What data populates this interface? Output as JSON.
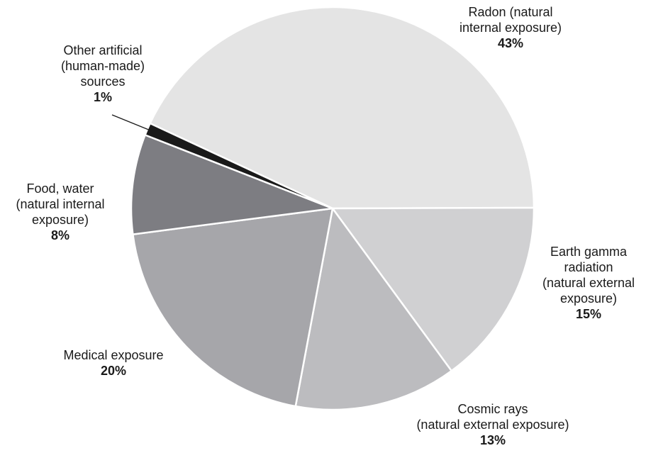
{
  "chart_data": {
    "type": "pie",
    "title": "",
    "slices": [
      {
        "label": "Radon (natural internal exposure)",
        "value": 43,
        "display": "43%",
        "color": "#e4e4e4"
      },
      {
        "label": "Earth gamma radiation (natural external exposure)",
        "value": 15,
        "display": "15%",
        "color": "#d0d0d2"
      },
      {
        "label": "Cosmic rays (natural external exposure)",
        "value": 13,
        "display": "13%",
        "color": "#bcbcbf"
      },
      {
        "label": "Medical exposure",
        "value": 20,
        "display": "20%",
        "color": "#a6a6aa"
      },
      {
        "label": "Food, water (natural internal exposure)",
        "value": 8,
        "display": "8%",
        "color": "#7d7d82"
      },
      {
        "label": "Other artificial (human-made) sources",
        "value": 1,
        "display": "1%",
        "color": "#1a1a1a"
      }
    ]
  },
  "labels": {
    "radon": {
      "line1": "Radon (natural",
      "line2": "internal exposure)",
      "value": "43%"
    },
    "earth": {
      "line1": "Earth gamma",
      "line2": "radiation",
      "line3": "(natural external",
      "line4": "exposure)",
      "value": "15%"
    },
    "cosmic": {
      "line1": "Cosmic rays",
      "line2": "(natural external exposure)",
      "value": "13%"
    },
    "medical": {
      "line1": "Medical exposure",
      "value": "20%"
    },
    "food": {
      "line1": "Food, water",
      "line2": "(natural internal",
      "line3": "exposure)",
      "value": "8%"
    },
    "other": {
      "line1": "Other artificial",
      "line2": "(human-made)",
      "line3": "sources",
      "value": "1%"
    }
  }
}
